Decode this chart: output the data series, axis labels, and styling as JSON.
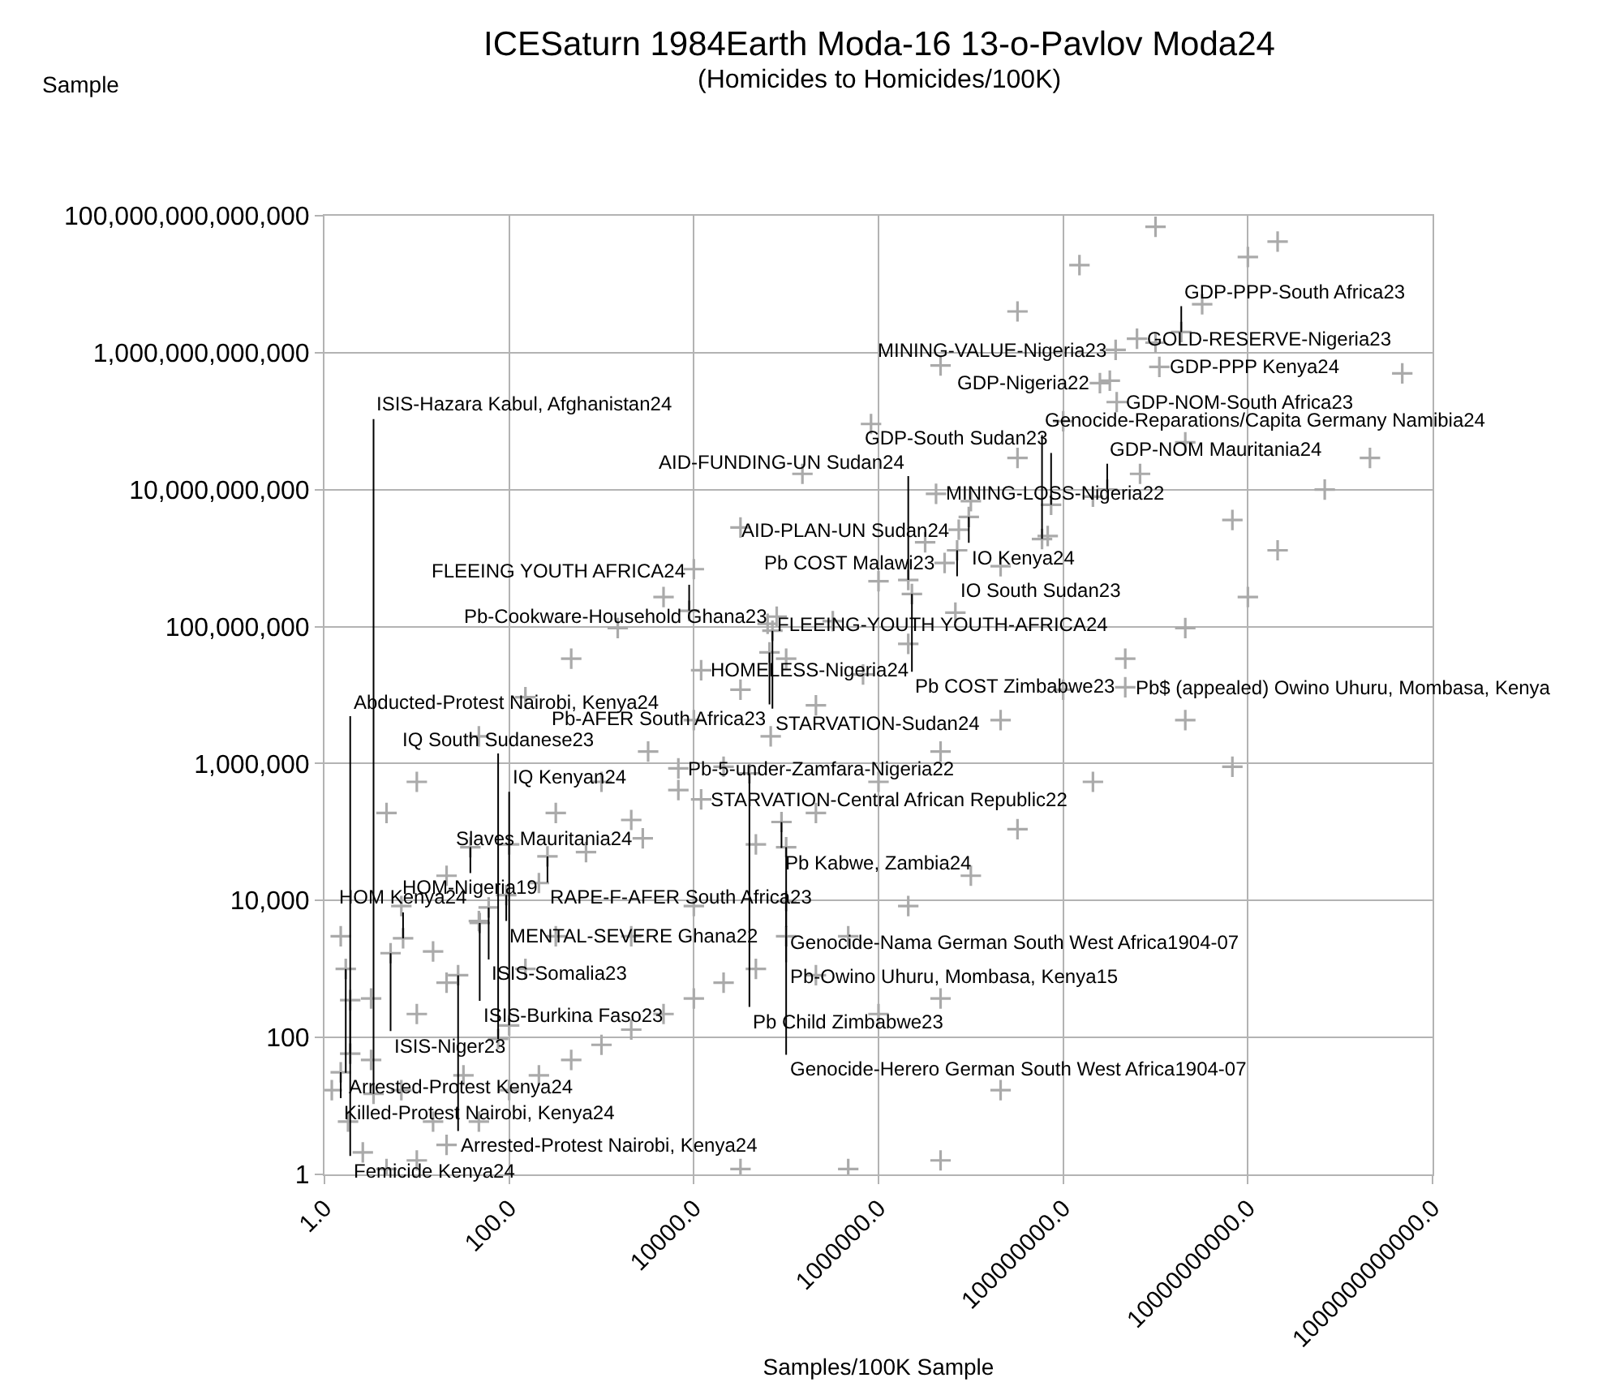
{
  "chart_data": {
    "type": "scatter",
    "title": "ICESaturn 1984Earth Moda-16 13-o-Pavlov Moda24",
    "subtitle": "(Homicides to Homicides/100K)",
    "xlabel": "Samples/100K Sample",
    "ylabel": "Sample",
    "log": "xy",
    "grid": true,
    "marker": "cross",
    "xlim": [
      1,
      1000000000000
    ],
    "ylim": [
      1,
      100000000000000
    ],
    "xticks": [
      {
        "value": 1,
        "label": "1.0"
      },
      {
        "value": 100,
        "label": "100.0"
      },
      {
        "value": 10000,
        "label": "10000.0"
      },
      {
        "value": 1000000,
        "label": "1000000.0"
      },
      {
        "value": 100000000,
        "label": "100000000.0"
      },
      {
        "value": 10000000000,
        "label": "10000000000.0"
      },
      {
        "value": 1000000000000,
        "label": "1000000000000.0"
      }
    ],
    "yticks": [
      1,
      100,
      {
        "value": 10000,
        "label": "10,000"
      },
      {
        "value": 1000000,
        "label": "1,000,000"
      },
      {
        "value": 100000000,
        "label": "100,000,000"
      },
      {
        "value": 10000000000,
        "label": "10,000,000,000"
      },
      {
        "value": 1000000000000,
        "label": "1,000,000,000,000"
      },
      {
        "value": 100000000000000,
        "label": "100,000,000,000,000"
      }
    ],
    "series": [
      {
        "color": "#aaaaaa",
        "x": [
          4.7,
          10,
          47,
          150,
          470,
          1500,
          4700,
          10000,
          32000,
          150000,
          830000,
          4700000,
          32000000,
          150000000,
          1000000000,
          1.5,
          6.8,
          21,
          100,
          320,
          1000,
          3200,
          10000,
          32000,
          100000,
          320000,
          1000000,
          3200000,
          10000000,
          32000000,
          100000000,
          320000000,
          1000000000,
          3200000000,
          10000000000,
          21000000000,
          3.2,
          15,
          47,
          210,
          680,
          2100,
          6800,
          21000,
          68000,
          210000,
          680000,
          2100000,
          6800000,
          21000000,
          68000000,
          210000000,
          680000000,
          2100000000,
          6800000000,
          21000000000,
          68000000000,
          210000000000,
          470000000000,
          6800000000,
          2100000000,
          10000000000,
          2100000000,
          470000000,
          100000000,
          21000000,
          4700000,
          1000000,
          210000,
          210000000,
          32000000,
          10000000,
          2100000,
          470000,
          1.2,
          1.8,
          2.6,
          4.7,
          10,
          21,
          47,
          100,
          210,
          470,
          1000,
          2100,
          4700,
          10000,
          21000,
          47000,
          210000,
          1000000,
          4700000,
          21000000,
          32000,
          470000,
          4700000,
          3.2,
          6.8,
          15,
          32,
          10,
          21,
          150,
          320,
          2100,
          10000,
          47000,
          6800,
          12000,
          63000,
          79000,
          4200000,
          630000000,
          1900000000,
          370000000,
          1100000000,
          250000000,
          380000000,
          300000000,
          74000000,
          9500000,
          7400000,
          59000000,
          7100000,
          5200000,
          2100000,
          2300000,
          8900,
          71000,
          66000,
          470000000,
          40000,
          12000,
          89000,
          2800,
          100000,
          38,
          260,
          93,
          100000,
          60,
          48,
          100000,
          7.1,
          5.2,
          1.7,
          28,
          1.9,
          100,
          76,
          1.9,
          1.5,
          3.4
        ],
        "values": [
          190000,
          540000,
          2500000,
          9300000,
          34000000,
          95000000,
          270000000,
          690000000,
          2800000000,
          17000000000,
          91000000000,
          650000000000,
          4000000000000,
          19000000000000,
          69000000000000,
          3000,
          8300,
          23000,
          66000,
          190000,
          540000,
          1500000,
          4300000,
          12000000,
          34000000,
          120000000,
          460000000,
          1700000000,
          6800000000,
          29000000000,
          100000000000,
          390000000000,
          1400000000000,
          5100000000000,
          25000000000000,
          42000000000000,
          370,
          1800,
          5000,
          18000,
          51000,
          150000,
          410000,
          900000,
          2500000,
          7100000,
          20000000,
          56000000,
          160000000,
          760000000,
          2100000000,
          7900000000,
          17000000000,
          49000000000,
          3600000000,
          1300000000,
          10000000000,
          29000000000,
          500000000000,
          900000,
          4300000,
          270000000,
          95000000,
          34000000,
          12000000,
          4300000,
          1500000,
          540000,
          190000,
          540000,
          110000,
          23000,
          8300,
          3000,
          17,
          5.9,
          2.1,
          1.2,
          1.6,
          2.7,
          5.9,
          17,
          28,
          47,
          78,
          130,
          220,
          370,
          630,
          1000,
          810,
          220,
          370,
          17,
          1.2,
          1.2,
          1.6,
          47,
          17,
          5.9,
          28,
          220,
          630,
          1000,
          3000,
          3000,
          8300,
          66000,
          850000,
          23000000,
          110000000,
          140000000,
          8700000000,
          1600000000000,
          2000000000000,
          1100000000000,
          620000000000,
          360000000000,
          190000000000,
          10000000000,
          6000000000,
          4000000000,
          2600000000,
          1900000000,
          1300000000,
          850000000,
          480000000,
          300000000,
          170000000,
          87000000,
          42000000,
          13000000,
          720000,
          300000,
          140000,
          81000,
          60000,
          60000,
          44000,
          12000,
          9800,
          7900,
          4700,
          3000,
          2800,
          1700,
          1000,
          810,
          350,
          150,
          95,
          58,
          31,
          15
        ]
      }
    ],
    "annotations": [
      {
        "text": "Pb-5-under-Zamfara-Nigeria22",
        "x": 6800,
        "y": 850000
      },
      {
        "text": "HOMELESS-Nigeria24",
        "x": 12000,
        "y": 23000000
      },
      {
        "text": "FLEEING-YOUTH YOUTH-AFRICA24",
        "x": 63000,
        "y": 110000000
      },
      {
        "text": "Pb-Cookware-Household Ghana23",
        "x": 79000,
        "y": 140000000
      },
      {
        "text": "MINING-LOSS-Nigeria22",
        "x": 4200000,
        "y": 8700000000
      },
      {
        "text": "GOLD-RESERVE-Nigeria23",
        "x": 630000000,
        "y": 1600000000000
      },
      {
        "text": "GDP-PPP-South Africa23",
        "x": 1900000000,
        "y": 2000000000000
      },
      {
        "text": "MINING-VALUE-Nigeria23",
        "x": 370000000,
        "y": 1100000000000
      },
      {
        "text": "GDP-PPP Kenya24",
        "x": 1100000000,
        "y": 620000000000
      },
      {
        "text": "GDP-Nigeria22",
        "x": 250000000,
        "y": 360000000000
      },
      {
        "text": "GDP-NOM-South Africa23",
        "x": 380000000,
        "y": 190000000000
      },
      {
        "text": "GDP-NOM Mauritania24",
        "x": 300000000,
        "y": 10000000000
      },
      {
        "text": "GDP-South Sudan23",
        "x": 74000000,
        "y": 6000000000
      },
      {
        "text": "IO Kenya24",
        "x": 9500000,
        "y": 4000000000
      },
      {
        "text": "AID-PLAN-UN Sudan24",
        "x": 7400000,
        "y": 2600000000
      },
      {
        "text": "Genocide-Reparations/Capita Germany Namibia24",
        "x": 59000000,
        "y": 1900000000
      },
      {
        "text": "IO South Sudan23",
        "x": 7100000,
        "y": 1300000000
      },
      {
        "text": "Pb COST Malawi23",
        "x": 5200000,
        "y": 850000000
      },
      {
        "text": "AID-FUNDING-UN Sudan24",
        "x": 2100000,
        "y": 480000000
      },
      {
        "text": "Pb COST Zimbabwe23",
        "x": 2300000,
        "y": 300000000
      },
      {
        "text": "FLEEING YOUTH AFRICA24",
        "x": 8900,
        "y": 170000000
      },
      {
        "text": "STARVATION-Sudan24",
        "x": 71000,
        "y": 87000000
      },
      {
        "text": "Pb-AFER South Africa23",
        "x": 66000,
        "y": 42000000
      },
      {
        "text": "Pb$ (appealed) Owino Uhuru, Mombasa, Kenya",
        "x": 470000000,
        "y": 13000000
      },
      {
        "text": "Pb Child Zimbabwe23",
        "x": 40000,
        "y": 720000
      },
      {
        "text": "STARVATION-Central African Republic22",
        "x": 12000,
        "y": 300000
      },
      {
        "text": "Pb Kabwe, Zambia24",
        "x": 89000,
        "y": 140000
      },
      {
        "text": "Slaves Mauritania24",
        "x": 2800,
        "y": 81000
      },
      {
        "text": "Genocide-Herero German South West Africa1904-07",
        "x": 100000,
        "y": 60000
      },
      {
        "text": "HOM-Nigeria19",
        "x": 38,
        "y": 60000
      },
      {
        "text": "RAPE-F-AFER South Africa23",
        "x": 260,
        "y": 44000
      },
      {
        "text": "MENTAL-SEVERE Ghana22",
        "x": 93,
        "y": 12000
      },
      {
        "text": "Genocide-Nama German South West Africa1904-07",
        "x": 100000,
        "y": 9800
      },
      {
        "text": "ISIS-Somalia23",
        "x": 60,
        "y": 7900
      },
      {
        "text": "ISIS-Burkina Faso23",
        "x": 48,
        "y": 4700
      },
      {
        "text": "Pb-Owino Uhuru, Mombasa, Kenya15",
        "x": 100000,
        "y": 3000
      },
      {
        "text": "HOM Kenya24",
        "x": 7.1,
        "y": 2800
      },
      {
        "text": "ISIS-Niger23",
        "x": 5.2,
        "y": 1700
      },
      {
        "text": "Arrested-Protest Kenya24",
        "x": 1.7,
        "y": 1000
      },
      {
        "text": "Arrested-Protest Nairobi, Kenya24",
        "x": 28,
        "y": 810
      },
      {
        "text": "Femicide Kenya24",
        "x": 1.9,
        "y": 350
      },
      {
        "text": "IQ Kenyan24",
        "x": 100,
        "y": 150
      },
      {
        "text": "IQ South Sudanese23",
        "x": 76,
        "y": 95
      },
      {
        "text": "Abducted-Protest Nairobi, Kenya24",
        "x": 1.9,
        "y": 58
      },
      {
        "text": "Killed-Protest Nairobi, Kenya24",
        "x": 1.5,
        "y": 31
      },
      {
        "text": "ISIS-Hazara Kabul, Afghanistan24",
        "x": 3.4,
        "y": 15
      }
    ]
  }
}
